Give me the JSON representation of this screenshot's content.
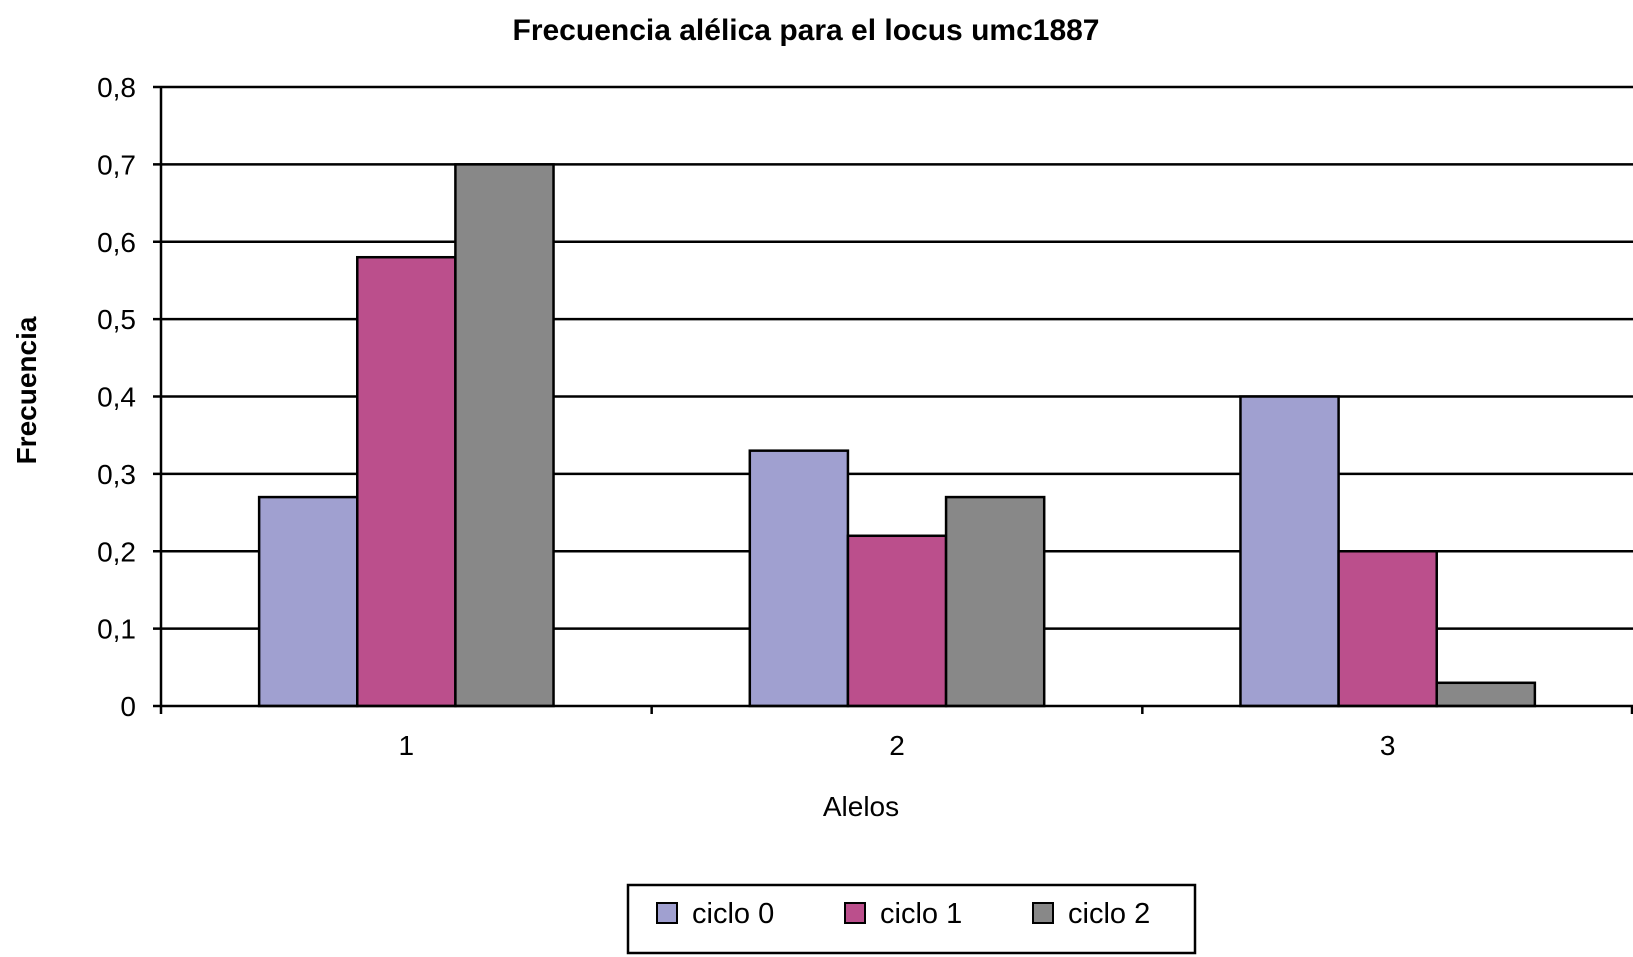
{
  "chart_data": {
    "type": "bar",
    "title": "Frecuencia alélica para el locus umc1887",
    "xlabel": "Alelos",
    "ylabel": "Frecuencia",
    "categories": [
      "1",
      "2",
      "3"
    ],
    "ylim": [
      0,
      0.8
    ],
    "yticks": [
      0,
      0.1,
      0.2,
      0.3,
      0.4,
      0.5,
      0.6,
      0.7,
      0.8
    ],
    "ytick_labels": [
      "0",
      "0,1",
      "0,2",
      "0,3",
      "0,4",
      "0,5",
      "0,6",
      "0,7",
      "0,8"
    ],
    "grid": true,
    "legend_position": "bottom",
    "series": [
      {
        "name": "ciclo 0",
        "color": "#a0a0d0",
        "values": [
          0.27,
          0.33,
          0.4
        ]
      },
      {
        "name": "ciclo 1",
        "color": "#bb4f8c",
        "values": [
          0.58,
          0.22,
          0.2
        ]
      },
      {
        "name": "ciclo 2",
        "color": "#888888",
        "values": [
          0.7,
          0.27,
          0.03
        ]
      }
    ]
  }
}
